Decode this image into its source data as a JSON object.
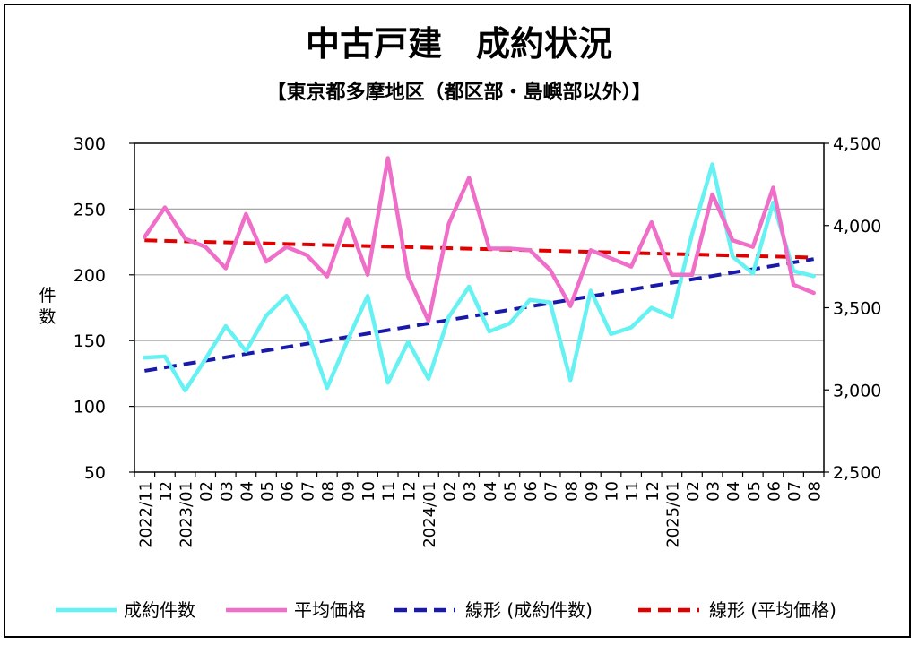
{
  "chart_data": {
    "type": "line",
    "title": "中古戸建　成約状況",
    "subtitle": "【東京都多摩地区（都区部・島嶼部以外）】",
    "ylabel_left": "件数",
    "ylim_left": [
      50,
      300
    ],
    "yticks_left": [
      "300",
      "250",
      "200",
      "150",
      "100",
      "50"
    ],
    "ylim_right": [
      2500,
      4500
    ],
    "yticks_right": [
      "4,500",
      "4,000",
      "3,500",
      "3,000",
      "2,500"
    ],
    "categories": [
      "2022/11",
      "12",
      "2023/01",
      "02",
      "03",
      "04",
      "05",
      "06",
      "07",
      "08",
      "09",
      "10",
      "11",
      "12",
      "2024/01",
      "02",
      "03",
      "04",
      "05",
      "06",
      "07",
      "08",
      "09",
      "10",
      "11",
      "12",
      "2025/01",
      "02",
      "03",
      "04",
      "05",
      "06",
      "07",
      "08"
    ],
    "series": [
      {
        "name": "成約件数",
        "axis": "left",
        "color": "#66f2f2",
        "style": "solid",
        "values": [
          137,
          138,
          112,
          136,
          161,
          142,
          169,
          184,
          158,
          114,
          150,
          184,
          118,
          149,
          121,
          168,
          191,
          157,
          163,
          181,
          179,
          120,
          188,
          155,
          160,
          175,
          168,
          231,
          284,
          214,
          201,
          255,
          203,
          199
        ]
      },
      {
        "name": "平均価格",
        "axis": "right",
        "color": "#ef6fc8",
        "style": "solid",
        "values": [
          3930,
          4110,
          3920,
          3870,
          3740,
          4070,
          3780,
          3870,
          3820,
          3690,
          4040,
          3700,
          4410,
          3690,
          3420,
          4010,
          4290,
          3860,
          3860,
          3850,
          3730,
          3510,
          3850,
          3800,
          3750,
          4020,
          3700,
          3700,
          4190,
          3910,
          3870,
          4230,
          3640,
          3590
        ]
      },
      {
        "name": "線形 (成約件数)",
        "axis": "left",
        "color": "#1a1aaa",
        "style": "dashed",
        "trend": [
          127,
          212
        ]
      },
      {
        "name": "線形 (平均価格)",
        "axis": "right",
        "color": "#e00000",
        "style": "dashed",
        "trend": [
          3910,
          3805
        ]
      }
    ],
    "legend_position": "bottom",
    "grid": true
  }
}
